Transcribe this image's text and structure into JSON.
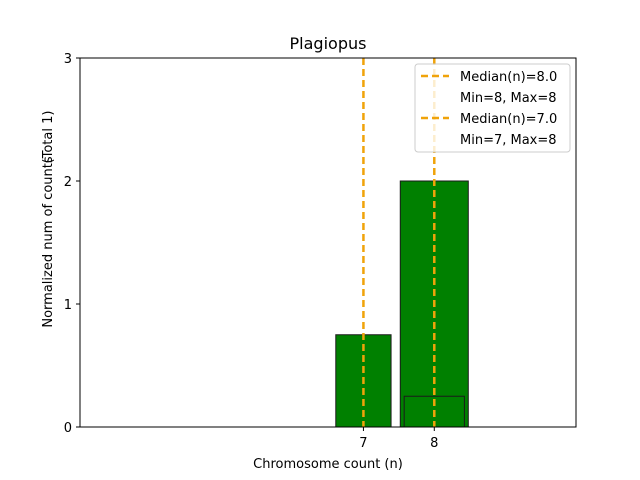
{
  "chart_data": {
    "type": "bar",
    "title": "Plagiopus",
    "xlabel": "Chromosome count (n)",
    "ylabel": "Normalized num of counts",
    "ylabel_note": "(Total 1)",
    "ylim": [
      0,
      3
    ],
    "xlim": [
      3,
      10
    ],
    "y_ticks": [
      "0",
      "1",
      "2",
      "3"
    ],
    "x_ticks": [
      {
        "value": 7,
        "label": "7"
      },
      {
        "value": 8,
        "label": "8"
      }
    ],
    "baseline_range": [
      3.5,
      9.0
    ],
    "bars": [
      {
        "x": 7,
        "value": 0.75,
        "color": "#008000"
      },
      {
        "x": 8,
        "value": 2.0,
        "color": "#008000"
      },
      {
        "x": 8,
        "value": 0.25,
        "color": "#008000"
      }
    ],
    "bar_edge_color": "#1a1a1a",
    "median_lines": [
      {
        "x": 8.0,
        "label": "Median(n)=8.0",
        "note": "Min=8, Max=8",
        "color": "#f0a30a"
      },
      {
        "x": 7.0,
        "label": "Median(n)=7.0",
        "note": "Min=7, Max=8",
        "color": "#f0a30a"
      }
    ],
    "legend_position": "top-right",
    "grid": false
  }
}
